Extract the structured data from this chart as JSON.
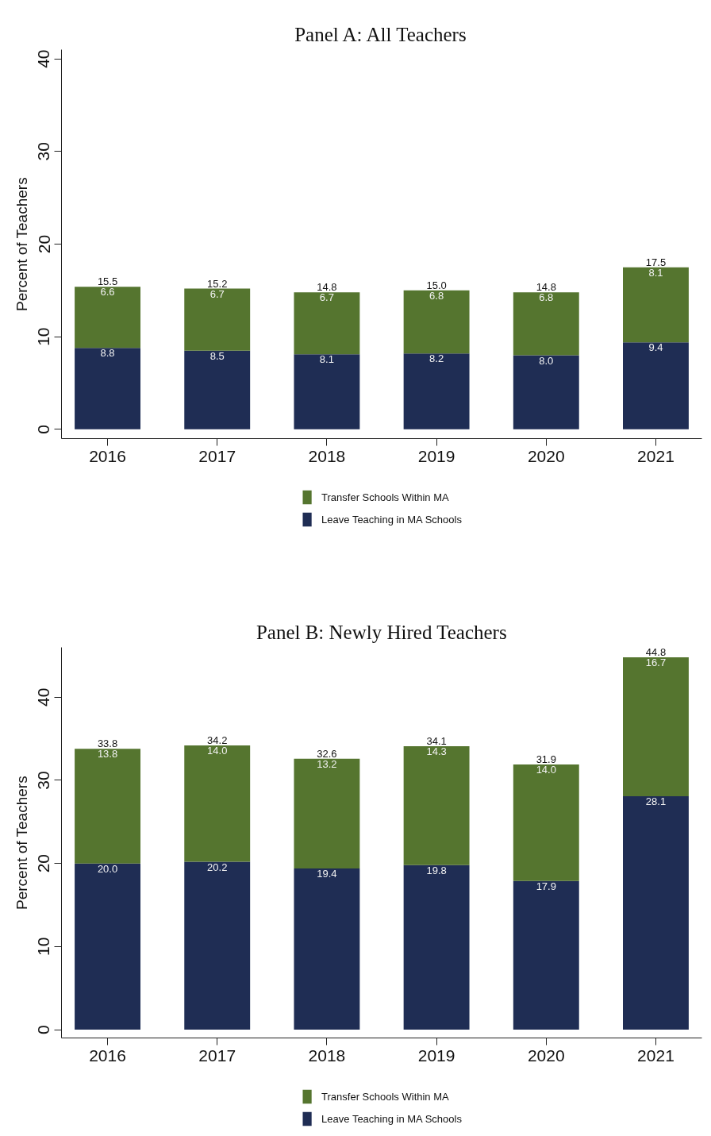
{
  "chart_data": [
    {
      "type": "bar",
      "title": "Panel A: All Teachers",
      "ylabel": "Percent of Teachers",
      "categories": [
        "2016",
        "2017",
        "2018",
        "2019",
        "2020",
        "2021"
      ],
      "stacked": true,
      "series": [
        {
          "name": "Leave Teaching in MA Schools",
          "color": "#1f2d54",
          "values": [
            8.8,
            8.5,
            8.1,
            8.2,
            8.0,
            9.4
          ],
          "value_labels": [
            "8.8",
            "8.5",
            "8.1",
            "8.2",
            "8.0",
            "9.4"
          ]
        },
        {
          "name": "Transfer Schools Within MA",
          "color": "#55752f",
          "values": [
            6.6,
            6.7,
            6.7,
            6.8,
            6.8,
            8.1
          ],
          "value_labels": [
            "6.6",
            "6.7",
            "6.7",
            "6.8",
            "6.8",
            "8.1"
          ]
        }
      ],
      "totals": [
        "15.5",
        "15.2",
        "14.8",
        "15.0",
        "14.8",
        "17.5"
      ],
      "ylim": [
        -1,
        41
      ],
      "yticks": [
        0,
        10,
        20,
        30,
        40
      ],
      "legend": "bottom",
      "grid": false
    },
    {
      "type": "bar",
      "title": "Panel B: Newly Hired Teachers",
      "ylabel": "Percent of Teachers",
      "categories": [
        "2016",
        "2017",
        "2018",
        "2019",
        "2020",
        "2021"
      ],
      "stacked": true,
      "series": [
        {
          "name": "Leave Teaching in MA Schools",
          "color": "#1f2d54",
          "values": [
            20.0,
            20.2,
            19.4,
            19.8,
            17.9,
            28.1
          ],
          "value_labels": [
            "20.0",
            "20.2",
            "19.4",
            "19.8",
            "17.9",
            "28.1"
          ]
        },
        {
          "name": "Transfer Schools Within MA",
          "color": "#55752f",
          "values": [
            13.8,
            14.0,
            13.2,
            14.3,
            14.0,
            16.7
          ],
          "value_labels": [
            "13.8",
            "14.0",
            "13.2",
            "14.3",
            "14.0",
            "16.7"
          ]
        }
      ],
      "totals": [
        "33.8",
        "34.2",
        "32.6",
        "34.1",
        "31.9",
        "44.8"
      ],
      "ylim": [
        -1,
        46
      ],
      "yticks": [
        0,
        10,
        20,
        30,
        40
      ],
      "legend": "bottom",
      "grid": false
    }
  ]
}
